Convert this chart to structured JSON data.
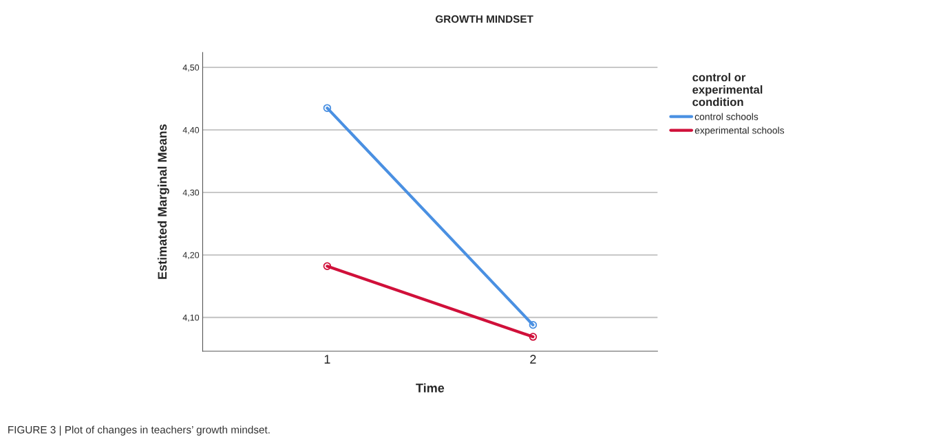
{
  "chart_data": {
    "type": "line",
    "title": "GROWTH MINDSET",
    "xlabel": "Time",
    "ylabel": "Estimated Marginal Means",
    "legend_title": "control or\nexperimental\ncondition",
    "categories": [
      "1",
      "2"
    ],
    "series": [
      {
        "name": "control schools",
        "color": "#4a90e2",
        "values": [
          4.435,
          4.088
        ]
      },
      {
        "name": "experimental schools",
        "color": "#d0103a",
        "values": [
          4.182,
          4.069
        ]
      }
    ],
    "ylim": [
      4.046,
      4.524
    ],
    "yticks": [
      {
        "value": 4.1,
        "label": "4,10"
      },
      {
        "value": 4.2,
        "label": "4,20"
      },
      {
        "value": 4.3,
        "label": "4,30"
      },
      {
        "value": 4.4,
        "label": "4,40"
      },
      {
        "value": 4.5,
        "label": "4,50"
      }
    ],
    "grid": "y",
    "legend": "right",
    "marker": "circle",
    "line_style": "solid",
    "annotations": [
      "FIGURE 3 | Plot of changes in teachers’ growth mindset."
    ]
  }
}
